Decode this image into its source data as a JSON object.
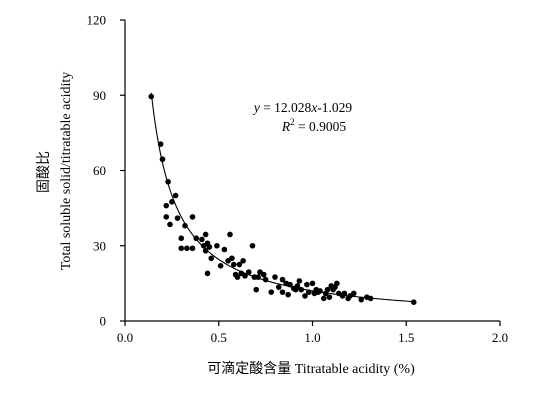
{
  "chart_data": {
    "type": "scatter",
    "title": "",
    "xlabel": "可滴定酸含量 Titratable acidity (%)",
    "ylabel_cn": "固酸比",
    "ylabel_en": "Total soluble solid/titratable acidity",
    "xlim": [
      0.0,
      2.0
    ],
    "ylim": [
      0,
      120
    ],
    "xticks": [
      "0.0",
      "0.5",
      "1.0",
      "1.5",
      "2.0"
    ],
    "yticks": [
      "0",
      "30",
      "60",
      "90",
      "120"
    ],
    "grid": false,
    "legend": "none",
    "fit": {
      "label_y": "y",
      "label_eq": " = 12.028",
      "label_x": "x",
      "label_exp": "-1.029",
      "label_r": "R",
      "label_r_sup": "2",
      "label_r_val": " = 0.9005",
      "coef": 12.028,
      "exponent": -1.029,
      "x_range": [
        0.14,
        1.54
      ]
    },
    "points": [
      [
        0.14,
        89.5
      ],
      [
        0.19,
        70.5
      ],
      [
        0.2,
        64.5
      ],
      [
        0.23,
        55.5
      ],
      [
        0.22,
        46.0
      ],
      [
        0.22,
        41.5
      ],
      [
        0.25,
        47.5
      ],
      [
        0.27,
        50.0
      ],
      [
        0.24,
        38.5
      ],
      [
        0.28,
        41.0
      ],
      [
        0.3,
        33.0
      ],
      [
        0.32,
        38.0
      ],
      [
        0.3,
        29.0
      ],
      [
        0.33,
        29.0
      ],
      [
        0.36,
        29.0
      ],
      [
        0.36,
        41.5
      ],
      [
        0.38,
        33.0
      ],
      [
        0.41,
        32.5
      ],
      [
        0.42,
        30.0
      ],
      [
        0.43,
        34.5
      ],
      [
        0.44,
        31.0
      ],
      [
        0.43,
        28.0
      ],
      [
        0.45,
        29.5
      ],
      [
        0.46,
        25.0
      ],
      [
        0.44,
        19.0
      ],
      [
        0.49,
        30.0
      ],
      [
        0.51,
        22.0
      ],
      [
        0.53,
        28.5
      ],
      [
        0.55,
        24.0
      ],
      [
        0.56,
        34.5
      ],
      [
        0.57,
        25.0
      ],
      [
        0.58,
        22.5
      ],
      [
        0.59,
        18.5
      ],
      [
        0.6,
        17.5
      ],
      [
        0.61,
        22.5
      ],
      [
        0.62,
        19.0
      ],
      [
        0.63,
        24.0
      ],
      [
        0.64,
        18.0
      ],
      [
        0.66,
        19.5
      ],
      [
        0.68,
        30.0
      ],
      [
        0.69,
        17.5
      ],
      [
        0.7,
        12.5
      ],
      [
        0.71,
        17.5
      ],
      [
        0.72,
        19.5
      ],
      [
        0.74,
        18.5
      ],
      [
        0.75,
        16.5
      ],
      [
        0.78,
        11.5
      ],
      [
        0.8,
        17.5
      ],
      [
        0.82,
        13.5
      ],
      [
        0.84,
        16.5
      ],
      [
        0.84,
        11.5
      ],
      [
        0.86,
        15.0
      ],
      [
        0.87,
        10.5
      ],
      [
        0.88,
        14.5
      ],
      [
        0.9,
        13.0
      ],
      [
        0.91,
        12.5
      ],
      [
        0.92,
        14.0
      ],
      [
        0.93,
        16.0
      ],
      [
        0.94,
        12.5
      ],
      [
        0.96,
        10.0
      ],
      [
        0.97,
        14.5
      ],
      [
        0.98,
        11.5
      ],
      [
        1.0,
        15.0
      ],
      [
        1.01,
        11.0
      ],
      [
        1.02,
        12.5
      ],
      [
        1.03,
        11.5
      ],
      [
        1.04,
        12.0
      ],
      [
        1.06,
        9.0
      ],
      [
        1.07,
        11.0
      ],
      [
        1.08,
        12.5
      ],
      [
        1.09,
        9.5
      ],
      [
        1.1,
        14.0
      ],
      [
        1.11,
        12.5
      ],
      [
        1.12,
        13.5
      ],
      [
        1.13,
        15.0
      ],
      [
        1.14,
        11.0
      ],
      [
        1.16,
        10.0
      ],
      [
        1.17,
        11.0
      ],
      [
        1.19,
        9.0
      ],
      [
        1.2,
        10.0
      ],
      [
        1.22,
        11.0
      ],
      [
        1.26,
        8.5
      ],
      [
        1.29,
        9.5
      ],
      [
        1.31,
        9.0
      ],
      [
        1.54,
        7.5
      ]
    ]
  }
}
